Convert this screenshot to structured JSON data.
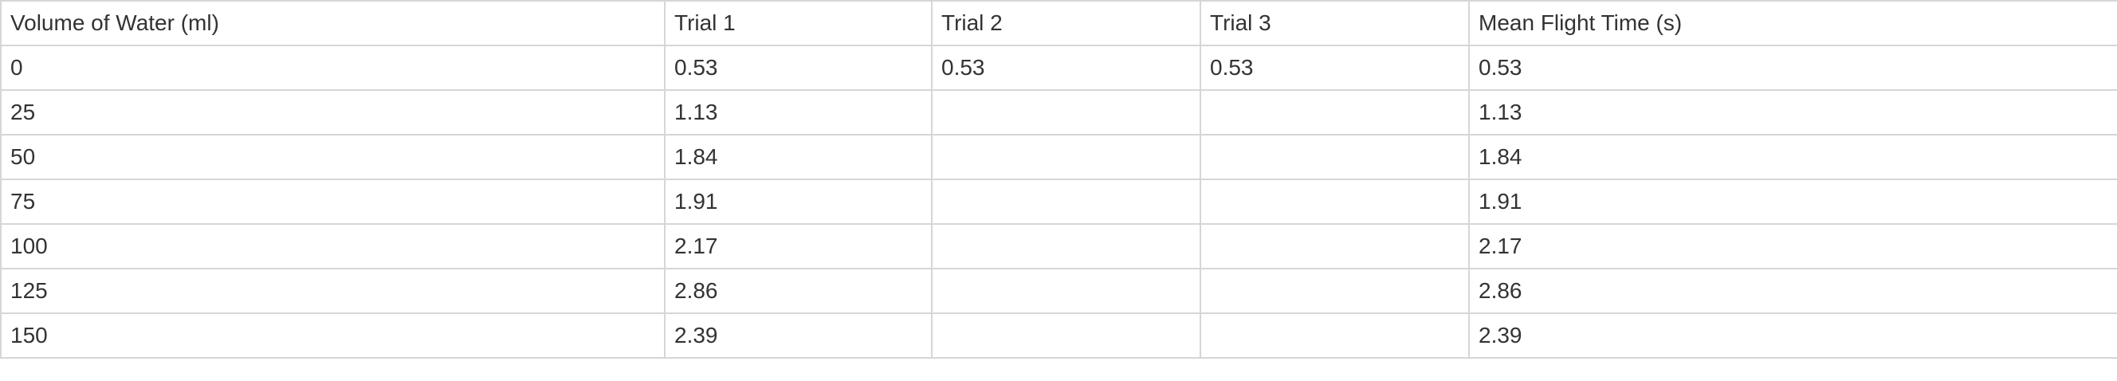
{
  "table": {
    "headers": [
      "Volume of Water (ml)",
      "Trial 1",
      "Trial 2",
      "Trial 3",
      "Mean Flight Time (s)"
    ],
    "rows": [
      [
        "0",
        "0.53",
        "0.53",
        "0.53",
        "0.53"
      ],
      [
        "25",
        "1.13",
        "",
        "",
        "1.13"
      ],
      [
        "50",
        "1.84",
        "",
        "",
        "1.84"
      ],
      [
        "75",
        "1.91",
        "",
        "",
        "1.91"
      ],
      [
        "100",
        "2.17",
        "",
        "",
        "2.17"
      ],
      [
        "125",
        "2.86",
        "",
        "",
        "2.86"
      ],
      [
        "150",
        "2.39",
        "",
        "",
        "2.39"
      ]
    ]
  }
}
